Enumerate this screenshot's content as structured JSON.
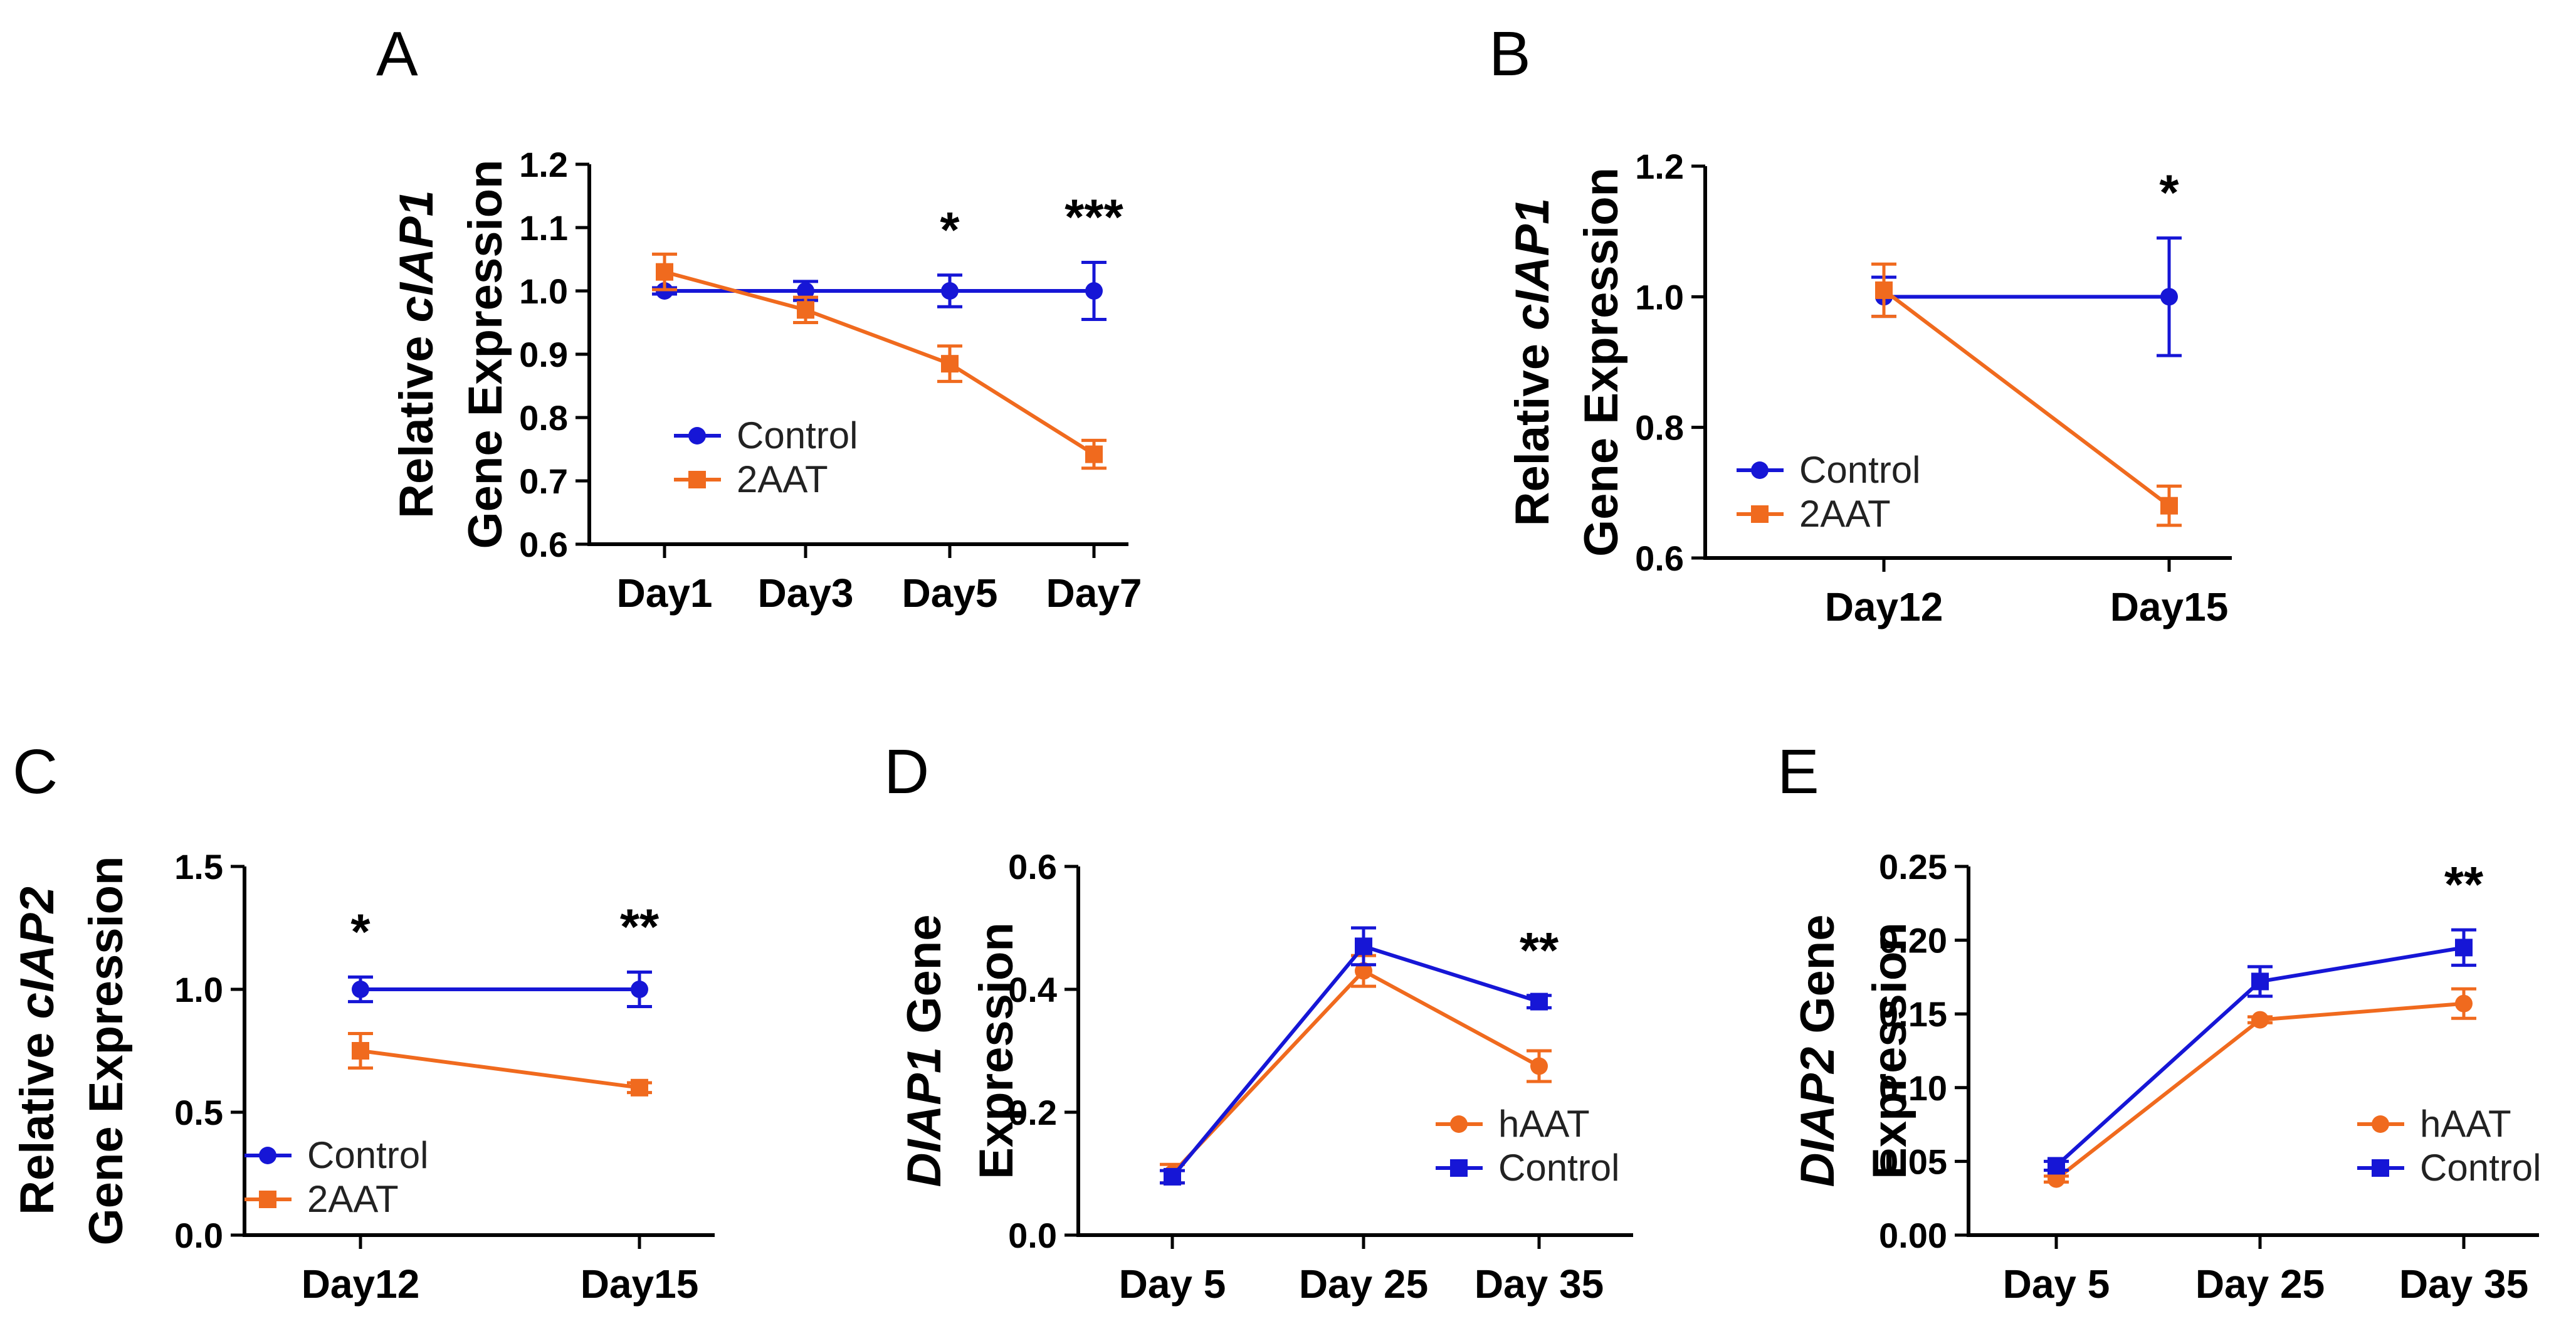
{
  "colors": {
    "blue": "#1616d6",
    "orange": "#f06a1e",
    "axis": "#000000"
  },
  "chart_data": [
    {
      "type": "line",
      "panel": "A",
      "title": "",
      "ylabel_lines": [
        [
          {
            "text": "Relative "
          },
          {
            "text": "cIAP1",
            "italic": true
          }
        ],
        [
          {
            "text": "Gene Expression"
          }
        ]
      ],
      "xlabel": "",
      "categories": [
        "Day1",
        "Day3",
        "Day5",
        "Day7"
      ],
      "ylim": [
        0.6,
        1.2
      ],
      "yticks": [
        0.6,
        0.7,
        0.8,
        0.9,
        1.0,
        1.1,
        1.2
      ],
      "ytick_labels": [
        "0.6",
        "0.7",
        "0.8",
        "0.9",
        "1.0",
        "1.1",
        "1.2"
      ],
      "series": [
        {
          "name": "Control",
          "color": "blue",
          "marker": "circle",
          "values": [
            1.0,
            1.0,
            1.0,
            1.0
          ],
          "errors": [
            0.005,
            0.015,
            0.025,
            0.045
          ]
        },
        {
          "name": "2AAT",
          "color": "orange",
          "marker": "square",
          "values": [
            1.03,
            0.97,
            0.885,
            0.742
          ],
          "errors": [
            0.028,
            0.02,
            0.028,
            0.022
          ]
        }
      ],
      "legend_order": [
        "Control",
        "2AAT"
      ],
      "legend_position": "lower-left",
      "annotations": [
        {
          "category": "Day5",
          "text": "*"
        },
        {
          "category": "Day7",
          "text": "***"
        }
      ]
    },
    {
      "type": "line",
      "panel": "B",
      "title": "",
      "ylabel_lines": [
        [
          {
            "text": "Relative "
          },
          {
            "text": "cIAP1",
            "italic": true
          }
        ],
        [
          {
            "text": "Gene Expression"
          }
        ]
      ],
      "xlabel": "",
      "categories": [
        "Day12",
        "Day15"
      ],
      "ylim": [
        0.6,
        1.2
      ],
      "yticks": [
        0.6,
        0.8,
        1.0,
        1.2
      ],
      "ytick_labels": [
        "0.6",
        "0.8",
        "1.0",
        "1.2"
      ],
      "series": [
        {
          "name": "Control",
          "color": "blue",
          "marker": "circle",
          "values": [
            1.0,
            1.0
          ],
          "errors": [
            0.03,
            0.09
          ]
        },
        {
          "name": "2AAT",
          "color": "orange",
          "marker": "square",
          "values": [
            1.01,
            0.68
          ],
          "errors": [
            0.04,
            0.03
          ]
        }
      ],
      "legend_order": [
        "Control",
        "2AAT"
      ],
      "legend_position": "lower-left",
      "annotations": [
        {
          "category": "Day15",
          "text": "*"
        }
      ]
    },
    {
      "type": "line",
      "panel": "C",
      "title": "",
      "ylabel_lines": [
        [
          {
            "text": "Relative "
          },
          {
            "text": "cIAP2",
            "italic": true
          }
        ],
        [
          {
            "text": "Gene Expression"
          }
        ]
      ],
      "xlabel": "",
      "categories": [
        "Day12",
        "Day15"
      ],
      "ylim": [
        0.0,
        1.5
      ],
      "yticks": [
        0.0,
        0.5,
        1.0,
        1.5
      ],
      "ytick_labels": [
        "0.0",
        "0.5",
        "1.0",
        "1.5"
      ],
      "series": [
        {
          "name": "Control",
          "color": "blue",
          "marker": "circle",
          "values": [
            1.0,
            1.0
          ],
          "errors": [
            0.05,
            0.07
          ]
        },
        {
          "name": "2AAT",
          "color": "orange",
          "marker": "square",
          "values": [
            0.75,
            0.6
          ],
          "errors": [
            0.07,
            0.02
          ]
        }
      ],
      "legend_order": [
        "Control",
        "2AAT"
      ],
      "legend_position": "lower-left",
      "annotations": [
        {
          "category": "Day12",
          "text": "*"
        },
        {
          "category": "Day15",
          "text": "**"
        }
      ]
    },
    {
      "type": "line",
      "panel": "D",
      "title": "",
      "ylabel_lines": [
        [
          {
            "text": "DIAP1",
            "italic": true
          },
          {
            "text": " Gene"
          }
        ],
        [
          {
            "text": "Expression"
          }
        ]
      ],
      "xlabel": "",
      "categories": [
        "Day 5",
        "Day 25",
        "Day 35"
      ],
      "ylim": [
        0.0,
        0.6
      ],
      "yticks": [
        0.0,
        0.2,
        0.4,
        0.6
      ],
      "ytick_labels": [
        "0.0",
        "0.2",
        "0.4",
        "0.6"
      ],
      "series": [
        {
          "name": "hAAT",
          "color": "orange",
          "marker": "circle",
          "values": [
            0.1,
            0.43,
            0.275
          ],
          "errors": [
            0.015,
            0.025,
            0.025
          ]
        },
        {
          "name": "Control",
          "color": "blue",
          "marker": "square",
          "values": [
            0.095,
            0.47,
            0.38
          ],
          "errors": [
            0.01,
            0.03,
            0.01
          ]
        }
      ],
      "legend_order": [
        "hAAT",
        "Control"
      ],
      "legend_position": "lower-right",
      "annotations": [
        {
          "category": "Day 35",
          "text": "**"
        }
      ]
    },
    {
      "type": "line",
      "panel": "E",
      "title": "",
      "ylabel_lines": [
        [
          {
            "text": "DIAP2",
            "italic": true
          },
          {
            "text": " Gene"
          }
        ],
        [
          {
            "text": "Expression"
          }
        ]
      ],
      "xlabel": "",
      "categories": [
        "Day 5",
        "Day 25",
        "Day 35"
      ],
      "ylim": [
        0.0,
        0.25
      ],
      "yticks": [
        0.0,
        0.05,
        0.1,
        0.15,
        0.2,
        0.25
      ],
      "ytick_labels": [
        "0.00",
        "0.05",
        "0.10",
        "0.15",
        "0.20",
        "0.25"
      ],
      "series": [
        {
          "name": "hAAT",
          "color": "orange",
          "marker": "circle",
          "values": [
            0.038,
            0.146,
            0.157
          ],
          "errors": [
            0.002,
            0.002,
            0.01
          ]
        },
        {
          "name": "Control",
          "color": "blue",
          "marker": "square",
          "values": [
            0.047,
            0.172,
            0.195
          ],
          "errors": [
            0.003,
            0.01,
            0.012
          ]
        }
      ],
      "legend_order": [
        "hAAT",
        "Control"
      ],
      "legend_position": "lower-right",
      "annotations": [
        {
          "category": "Day 35",
          "text": "**"
        }
      ]
    }
  ]
}
